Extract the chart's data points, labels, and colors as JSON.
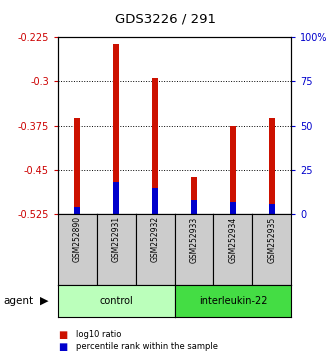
{
  "title": "GDS3226 / 291",
  "samples": [
    "GSM252890",
    "GSM252931",
    "GSM252932",
    "GSM252933",
    "GSM252934",
    "GSM252935"
  ],
  "log10_ratio": [
    -0.362,
    -0.237,
    -0.295,
    -0.462,
    -0.375,
    -0.362
  ],
  "percentile_rank": [
    4.0,
    18.0,
    15.0,
    8.0,
    7.0,
    6.0
  ],
  "ylim_left": [
    -0.525,
    -0.225
  ],
  "ylim_right": [
    0,
    100
  ],
  "yticks_left": [
    -0.525,
    -0.45,
    -0.375,
    -0.3,
    -0.225
  ],
  "yticks_right": [
    0,
    25,
    50,
    75,
    100
  ],
  "bar_bottom": -0.525,
  "bar_color": "#cc1100",
  "percentile_color": "#0000cc",
  "control_color": "#bbffbb",
  "interleukin_color": "#44dd44",
  "agent_label": "agent",
  "control_label": "control",
  "interleukin_label": "interleukin-22",
  "legend_bar_label": "log10 ratio",
  "legend_pct_label": "percentile rank within the sample",
  "left_axis_color": "#cc0000",
  "right_axis_color": "#0000cc",
  "sample_box_color": "#cccccc",
  "bar_width": 0.15
}
